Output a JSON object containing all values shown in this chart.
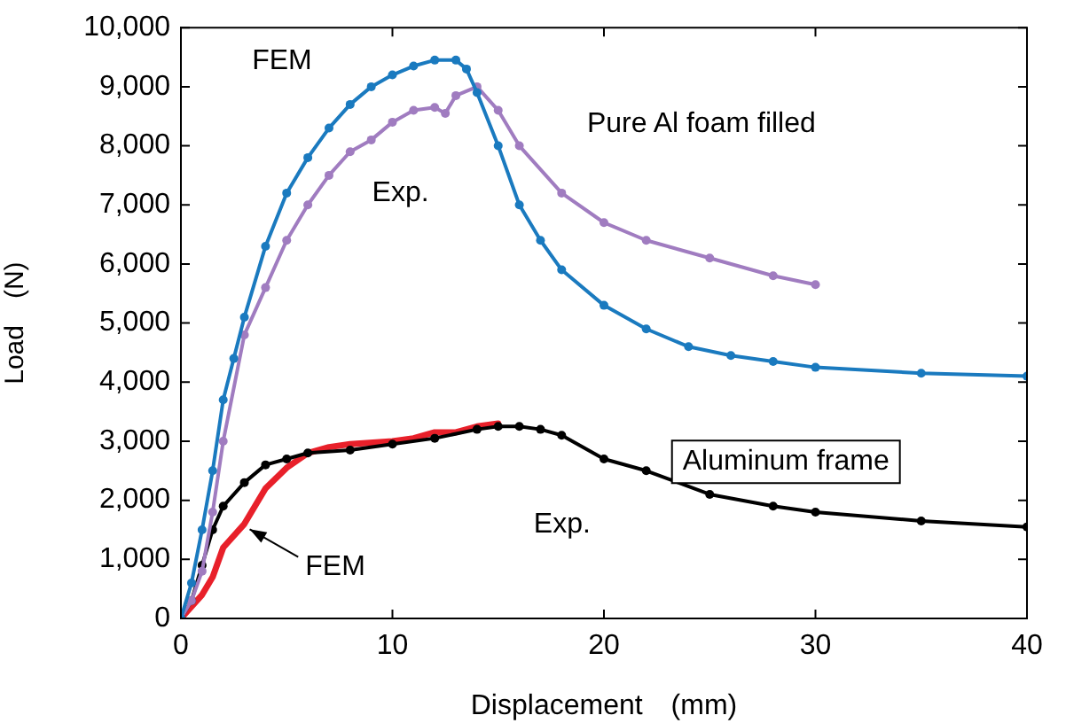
{
  "chart_data": {
    "type": "line",
    "xlabel": "Displacement　(mm)",
    "ylabel": "Load　(N)",
    "xlim": [
      0,
      40
    ],
    "xticks": [
      0,
      10,
      20,
      30,
      40
    ],
    "ylim": [
      0,
      10000
    ],
    "yticks": [
      {
        "value": 0,
        "label": "0"
      },
      {
        "value": 1000,
        "label": "1,000"
      },
      {
        "value": 2000,
        "label": "2,000"
      },
      {
        "value": 3000,
        "label": "3,000"
      },
      {
        "value": 4000,
        "label": "4,000"
      },
      {
        "value": 5000,
        "label": "5,000"
      },
      {
        "value": 6000,
        "label": "6,000"
      },
      {
        "value": 7000,
        "label": "7,000"
      },
      {
        "value": 8000,
        "label": "8,000"
      },
      {
        "value": 9000,
        "label": "9,000"
      },
      {
        "value": 10000,
        "label": "10,000"
      }
    ],
    "grid": false,
    "legend": false,
    "marker": "circle",
    "line_style": "solid",
    "series": [
      {
        "name": "FEM",
        "color": "#1a7abf",
        "x": [
          0,
          0.5,
          1,
          1.5,
          2,
          2.5,
          3,
          4,
          5,
          6,
          7,
          8,
          9,
          10,
          11,
          12,
          13,
          13.5,
          14,
          15,
          16,
          17,
          18,
          20,
          22,
          24,
          26,
          28,
          30,
          35,
          40
        ],
        "values": [
          0,
          600,
          1500,
          2500,
          3700,
          4400,
          5100,
          6300,
          7200,
          7800,
          8300,
          8700,
          9000,
          9200,
          9350,
          9450,
          9450,
          9300,
          8900,
          8000,
          7000,
          6400,
          5900,
          5300,
          4900,
          4600,
          4450,
          4350,
          4250,
          4150,
          4100
        ]
      },
      {
        "name": "Exp.",
        "color": "#a07cc0",
        "x": [
          0,
          0.5,
          1,
          1.5,
          2,
          3,
          4,
          5,
          6,
          7,
          8,
          9,
          10,
          11,
          12,
          12.5,
          13,
          14,
          15,
          16,
          18,
          20,
          22,
          25,
          28,
          30
        ],
        "values": [
          0,
          300,
          800,
          1800,
          3000,
          4800,
          5600,
          6400,
          7000,
          7500,
          7900,
          8100,
          8400,
          8600,
          8650,
          8550,
          8850,
          9000,
          8600,
          8000,
          7200,
          6700,
          6400,
          6100,
          5800,
          5650
        ]
      },
      {
        "name": "Exp.",
        "color": "#000000",
        "x": [
          0,
          0.5,
          1,
          1.5,
          2,
          3,
          4,
          5,
          6,
          8,
          10,
          12,
          14,
          15,
          16,
          17,
          18,
          20,
          22,
          25,
          28,
          30,
          35,
          40
        ],
        "values": [
          0,
          300,
          900,
          1500,
          1900,
          2300,
          2600,
          2700,
          2800,
          2850,
          2950,
          3050,
          3200,
          3250,
          3250,
          3200,
          3100,
          2700,
          2500,
          2100,
          1900,
          1800,
          1650,
          1550
        ]
      },
      {
        "name": "FEM",
        "color": "#e8202a",
        "marker": "none",
        "x": [
          0,
          0.5,
          1,
          1.5,
          2,
          3,
          4,
          5,
          6,
          7,
          8,
          10,
          11,
          12,
          13,
          14,
          15
        ],
        "values": [
          0,
          200,
          400,
          700,
          1200,
          1600,
          2200,
          2550,
          2800,
          2900,
          2950,
          3000,
          3050,
          3150,
          3150,
          3250,
          3300
        ]
      }
    ],
    "annotations": [
      "Pure Al foam filled",
      "Aluminum frame"
    ]
  }
}
